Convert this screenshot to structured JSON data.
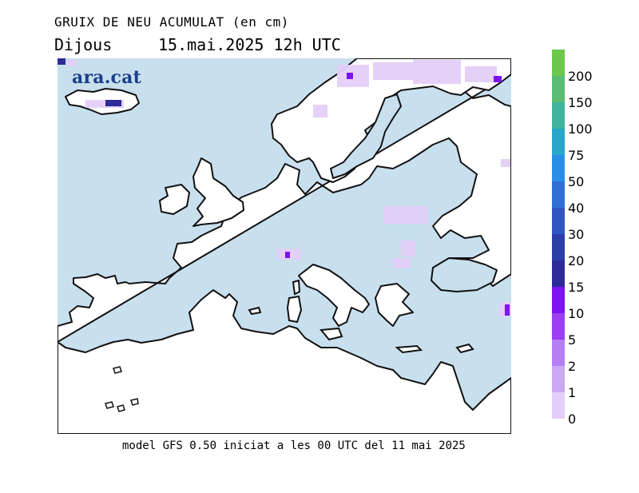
{
  "header": {
    "title": "GRUIX DE NEU ACUMULAT (en cm)",
    "day": "Dijous",
    "datetime": "15.mai.2025 12h UTC"
  },
  "logo": {
    "text": "ara.cat",
    "color": "#1a3f8a"
  },
  "footer": {
    "text": "model GFS 0.50 iniciat a les 00 UTC del 11 mai 2025"
  },
  "colors": {
    "sea": "#c8dfee",
    "land": "#ffffff",
    "coast": "#111111"
  },
  "legend": {
    "unit": "cm",
    "levels": [
      {
        "label": "200",
        "color": "#6cc84a"
      },
      {
        "label": "150",
        "color": "#5bbd74"
      },
      {
        "label": "100",
        "color": "#3fb39c"
      },
      {
        "label": "75",
        "color": "#29a6c9"
      },
      {
        "label": "50",
        "color": "#2a8ee6"
      },
      {
        "label": "40",
        "color": "#2f6fd6"
      },
      {
        "label": "30",
        "color": "#2f55c0"
      },
      {
        "label": "20",
        "color": "#2a3ea8"
      },
      {
        "label": "15",
        "color": "#2e2a98"
      },
      {
        "label": "10",
        "color": "#7e13f0"
      },
      {
        "label": "5",
        "color": "#9b3ef0"
      },
      {
        "label": "2",
        "color": "#b47ff2"
      },
      {
        "label": "1",
        "color": "#cca8f5"
      },
      {
        "label": "0",
        "color": "#e4cff8"
      }
    ]
  }
}
